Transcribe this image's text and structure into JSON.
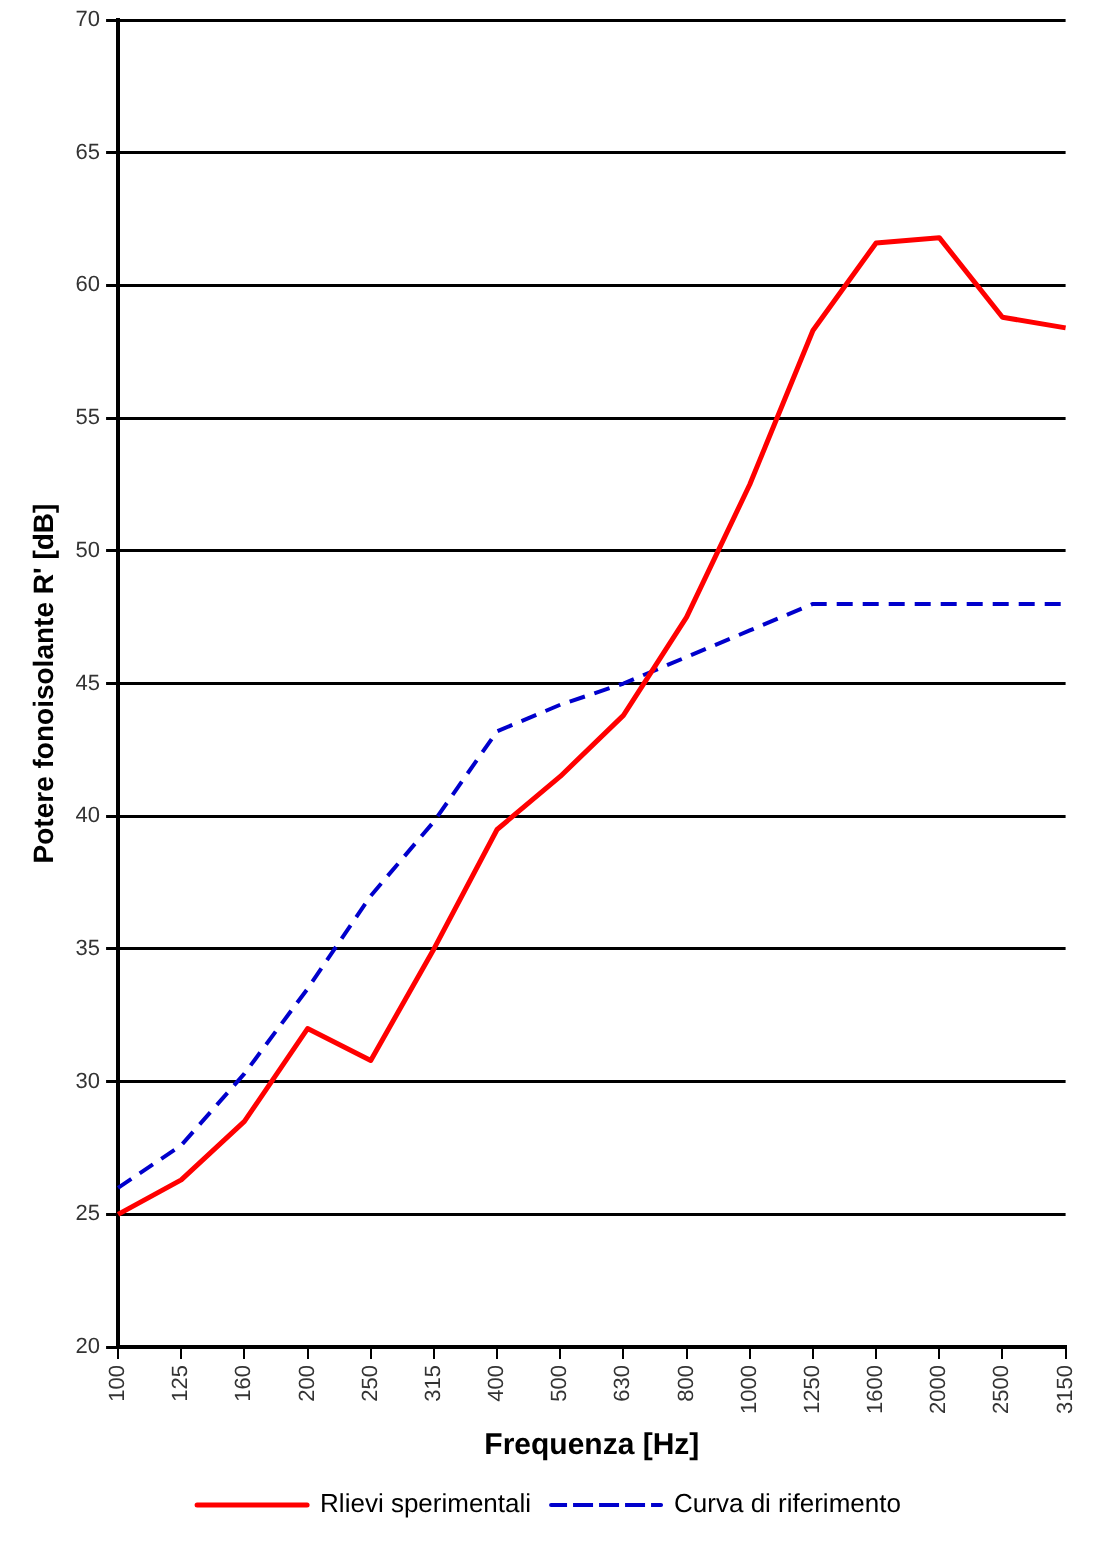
{
  "chart_data": {
    "type": "line",
    "xlabel": "Frequenza [Hz]",
    "ylabel": "Potere fonoisolante R' [dB]",
    "categories": [
      "100",
      "125",
      "160",
      "200",
      "250",
      "315",
      "400",
      "500",
      "630",
      "800",
      "1000",
      "1250",
      "1600",
      "2000",
      "2500",
      "3150"
    ],
    "series": [
      {
        "name": "Rlievi sperimentali",
        "color": "#ff0000",
        "line_style": "solid",
        "values": [
          25,
          26.3,
          28.5,
          32,
          30.8,
          35,
          39.5,
          41.5,
          43.8,
          47.5,
          52.5,
          58.3,
          61.6,
          61.8,
          58.8,
          58.4
        ]
      },
      {
        "name": "Curva di riferimento",
        "color": "#0000cc",
        "line_style": "dashed",
        "values": [
          26,
          27.6,
          30.3,
          33.5,
          37,
          39.8,
          43.2,
          44.2,
          45,
          46,
          47,
          48,
          48,
          48,
          48,
          48
        ]
      }
    ],
    "ylim": [
      20,
      70
    ],
    "yticks": [
      20,
      25,
      30,
      35,
      40,
      45,
      50,
      55,
      60,
      65,
      70
    ],
    "grid": "y",
    "legend": "bottom",
    "marker": "none"
  }
}
